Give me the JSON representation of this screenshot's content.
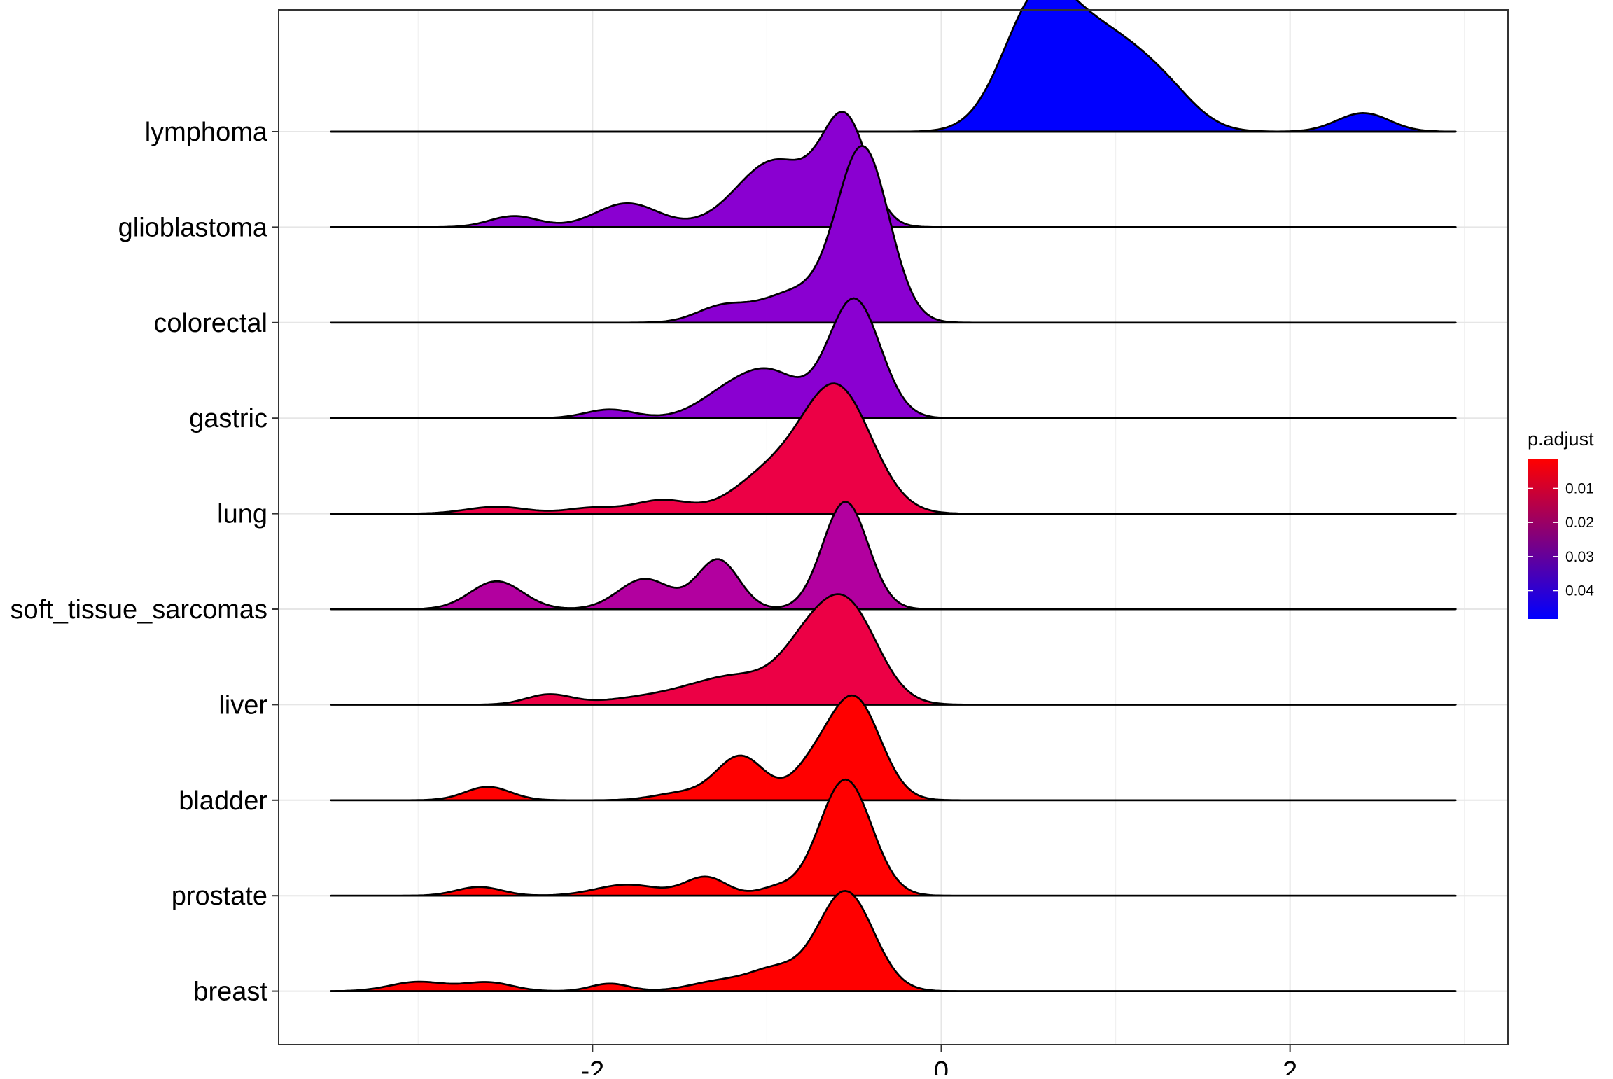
{
  "chart_data": {
    "type": "ridgeline",
    "title": "",
    "xlabel": "",
    "ylabel": "",
    "xlim": [
      -3.8,
      3.25
    ],
    "x_ticks": [
      -2,
      0,
      2
    ],
    "x_tick_labels": [
      "-2",
      "0",
      "2"
    ],
    "x_domain": [
      -3.5,
      2.95
    ],
    "grid": true,
    "legend": {
      "title": "p.adjust",
      "placement": "right",
      "range": [
        0.0015,
        0.0483
      ],
      "ticks": [
        0.01,
        0.02,
        0.03,
        0.04
      ],
      "tick_labels": [
        "0.01",
        "0.02",
        "0.03",
        "0.04"
      ],
      "color_low": "#ff0000",
      "color_high": "#0000ff"
    },
    "categories": [
      "breast",
      "prostate",
      "bladder",
      "liver",
      "soft_tissue_sarcomas",
      "lung",
      "gastric",
      "colorectal",
      "glioblastoma",
      "lymphoma"
    ],
    "series": [
      {
        "name": "breast",
        "p_adjust": 0.002,
        "color": "#ff0000",
        "peaks": [
          [
            -3.0,
            0.16,
            0.16
          ],
          [
            -2.6,
            0.15,
            0.14
          ],
          [
            -1.9,
            0.13,
            0.11
          ],
          [
            -1.25,
            0.18,
            0.18
          ],
          [
            -0.95,
            0.33,
            0.14
          ],
          [
            -0.55,
            1.72,
            0.16
          ]
        ]
      },
      {
        "name": "prostate",
        "p_adjust": 0.003,
        "color": "#ff0000",
        "peaks": [
          [
            -2.65,
            0.15,
            0.13
          ],
          [
            -1.8,
            0.19,
            0.18
          ],
          [
            -1.35,
            0.32,
            0.12
          ],
          [
            -0.95,
            0.13,
            0.1
          ],
          [
            -0.55,
            2.0,
            0.15
          ]
        ]
      },
      {
        "name": "bladder",
        "p_adjust": 0.002,
        "color": "#ff0000",
        "peaks": [
          [
            -2.6,
            0.23,
            0.13
          ],
          [
            -1.5,
            0.12,
            0.15
          ],
          [
            -1.15,
            0.76,
            0.14
          ],
          [
            -0.75,
            0.42,
            0.12
          ],
          [
            -0.5,
            1.75,
            0.15
          ]
        ]
      },
      {
        "name": "liver",
        "p_adjust": 0.015,
        "color": "#ec0045",
        "peaks": [
          [
            -2.25,
            0.17,
            0.13
          ],
          [
            -1.7,
            0.1,
            0.25
          ],
          [
            -1.15,
            0.5,
            0.28
          ],
          [
            -0.8,
            0.48,
            0.14
          ],
          [
            -0.55,
            1.72,
            0.18
          ]
        ]
      },
      {
        "name": "soft_tissue_sarcomas",
        "p_adjust": 0.032,
        "color": "#b2009f",
        "peaks": [
          [
            -2.55,
            0.48,
            0.15
          ],
          [
            -1.7,
            0.52,
            0.15
          ],
          [
            -1.28,
            0.85,
            0.12
          ],
          [
            -0.55,
            1.85,
            0.13
          ]
        ]
      },
      {
        "name": "lung",
        "p_adjust": 0.015,
        "color": "#ec0045",
        "peaks": [
          [
            -2.55,
            0.12,
            0.17
          ],
          [
            -2.0,
            0.1,
            0.15
          ],
          [
            -1.6,
            0.23,
            0.16
          ],
          [
            -1.0,
            0.62,
            0.2
          ],
          [
            -0.6,
            2.15,
            0.2
          ]
        ]
      },
      {
        "name": "gastric",
        "p_adjust": 0.042,
        "color": "#8a00d1",
        "peaks": [
          [
            -1.9,
            0.15,
            0.14
          ],
          [
            -1.2,
            0.48,
            0.18
          ],
          [
            -0.95,
            0.62,
            0.16
          ],
          [
            -0.5,
            2.05,
            0.15
          ]
        ]
      },
      {
        "name": "colorectal",
        "p_adjust": 0.042,
        "color": "#8a00d1",
        "peaks": [
          [
            -1.25,
            0.28,
            0.15
          ],
          [
            -0.85,
            0.5,
            0.18
          ],
          [
            -0.45,
            3.0,
            0.15
          ]
        ]
      },
      {
        "name": "glioblastoma",
        "p_adjust": 0.042,
        "color": "#8a00d1",
        "peaks": [
          [
            -2.45,
            0.19,
            0.14
          ],
          [
            -1.8,
            0.41,
            0.18
          ],
          [
            -0.95,
            1.15,
            0.22
          ],
          [
            -0.55,
            1.75,
            0.13
          ]
        ]
      },
      {
        "name": "lymphoma",
        "p_adjust": 0.048,
        "color": "#0000ff",
        "peaks": [
          [
            0.55,
            2.1,
            0.2
          ],
          [
            0.95,
            1.5,
            0.24
          ],
          [
            1.3,
            0.45,
            0.18
          ],
          [
            2.42,
            0.32,
            0.15
          ]
        ]
      }
    ]
  }
}
